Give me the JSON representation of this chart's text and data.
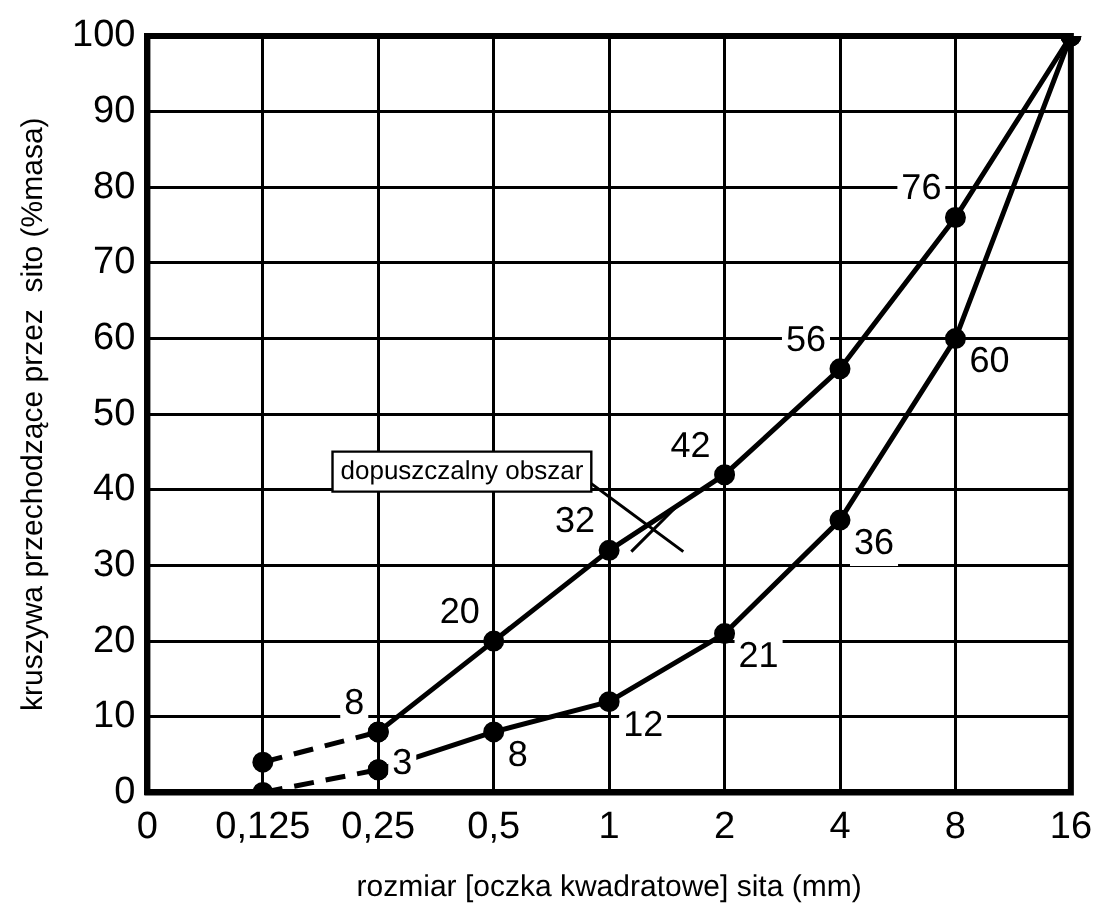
{
  "chart_data": {
    "type": "line",
    "xlabel": "rozmiar [oczka kwadratowe] sita (mm)",
    "ylabel": "kruszywa przechodzące przez  sito (%masa)",
    "categories": [
      "0",
      "0,125",
      "0,25",
      "0,5",
      "1",
      "2",
      "4",
      "8",
      "16"
    ],
    "series": [
      {
        "color": "#000000",
        "line_style": "dashed",
        "values": [
          null,
          4,
          8,
          null,
          null,
          null,
          null,
          null,
          null
        ]
      },
      {
        "color": "#000000",
        "line_style": "dashed",
        "values": [
          null,
          0,
          3,
          null,
          null,
          null,
          null,
          null,
          null
        ]
      },
      {
        "color": "#000000",
        "line_style": "solid",
        "values": [
          null,
          null,
          8,
          20,
          32,
          42,
          56,
          76,
          100
        ],
        "value_labels": [
          null,
          null,
          "8",
          "20",
          "32",
          "42",
          "56",
          "76",
          null
        ]
      },
      {
        "color": "#000000",
        "line_style": "solid",
        "values": [
          null,
          null,
          3,
          8,
          12,
          21,
          36,
          60,
          100
        ],
        "value_labels": [
          null,
          null,
          "3",
          "8",
          "12",
          "21",
          "36",
          "60",
          null
        ]
      }
    ],
    "ylim": [
      0,
      100
    ],
    "yticks": [
      0,
      10,
      20,
      30,
      40,
      50,
      60,
      70,
      80,
      90,
      100
    ],
    "grid": true,
    "legend": false,
    "marker": "circle",
    "annotations": [
      "dopuszczalny obszar"
    ]
  }
}
